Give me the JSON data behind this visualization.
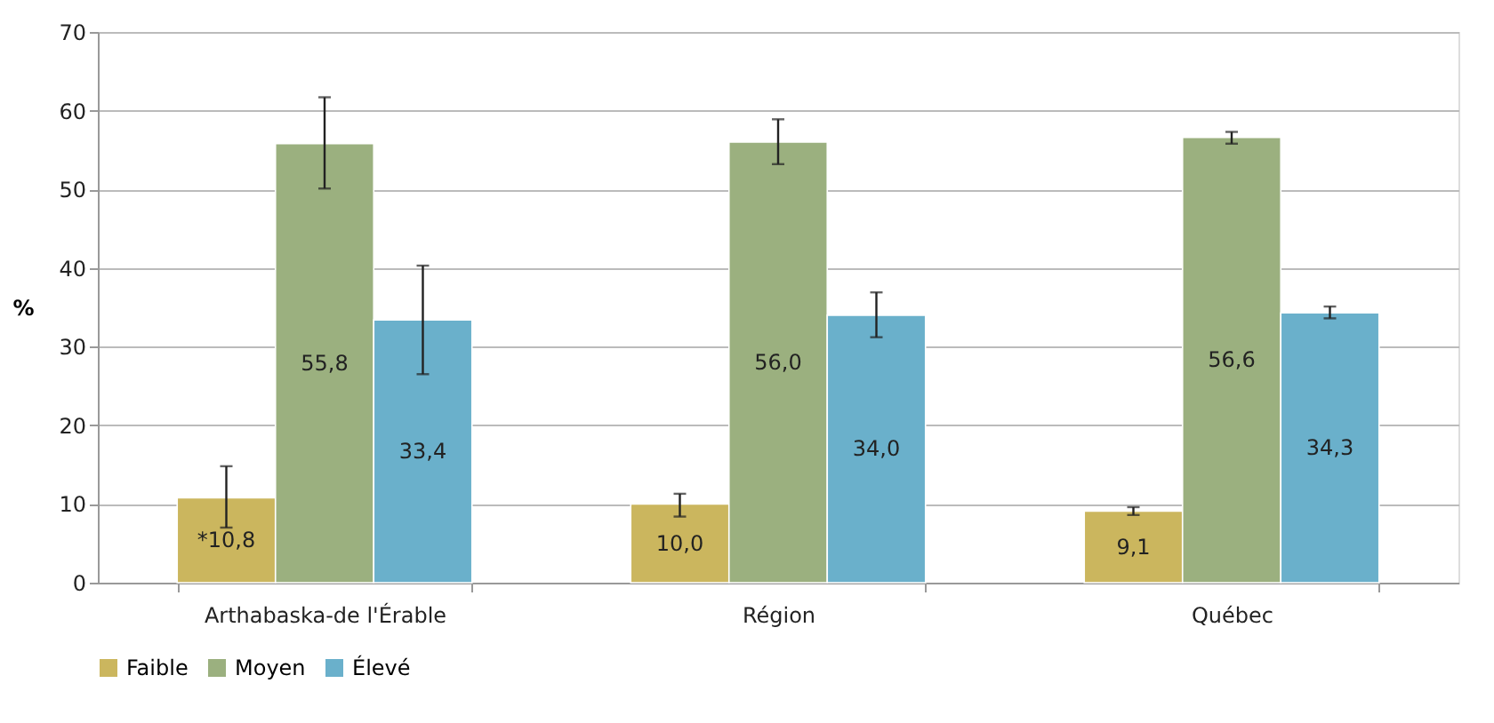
{
  "chart_data": {
    "type": "bar",
    "ylabel": "%",
    "categories": [
      "Arthabaska-de l'Érable",
      "Région",
      "Québec"
    ],
    "series": [
      {
        "name": "Faible",
        "color": "#cbb65e",
        "values": [
          10.8,
          10.0,
          9.1
        ],
        "errors": [
          [
            7.0,
            14.8
          ],
          [
            8.4,
            11.3
          ],
          [
            8.6,
            9.6
          ]
        ],
        "value_labels": [
          "*10,8",
          "10,0",
          "9,1"
        ]
      },
      {
        "name": "Moyen",
        "color": "#9bb07f",
        "values": [
          55.8,
          56.0,
          56.6
        ],
        "errors": [
          [
            50.1,
            61.7
          ],
          [
            53.2,
            58.9
          ],
          [
            55.8,
            57.3
          ]
        ],
        "value_labels": [
          "55,8",
          "56,0",
          "56,6"
        ]
      },
      {
        "name": "Élevé",
        "color": "#6ab0cb",
        "values": [
          33.4,
          34.0,
          34.3
        ],
        "errors": [
          [
            26.5,
            40.3
          ],
          [
            31.2,
            36.9
          ],
          [
            33.6,
            35.1
          ]
        ],
        "value_labels": [
          "33,4",
          "34,0",
          "34,3"
        ]
      }
    ],
    "ylim": [
      0,
      70
    ],
    "yticks": [
      0,
      10,
      20,
      30,
      40,
      50,
      60,
      70
    ],
    "grid": "y",
    "legend": "bottom"
  }
}
